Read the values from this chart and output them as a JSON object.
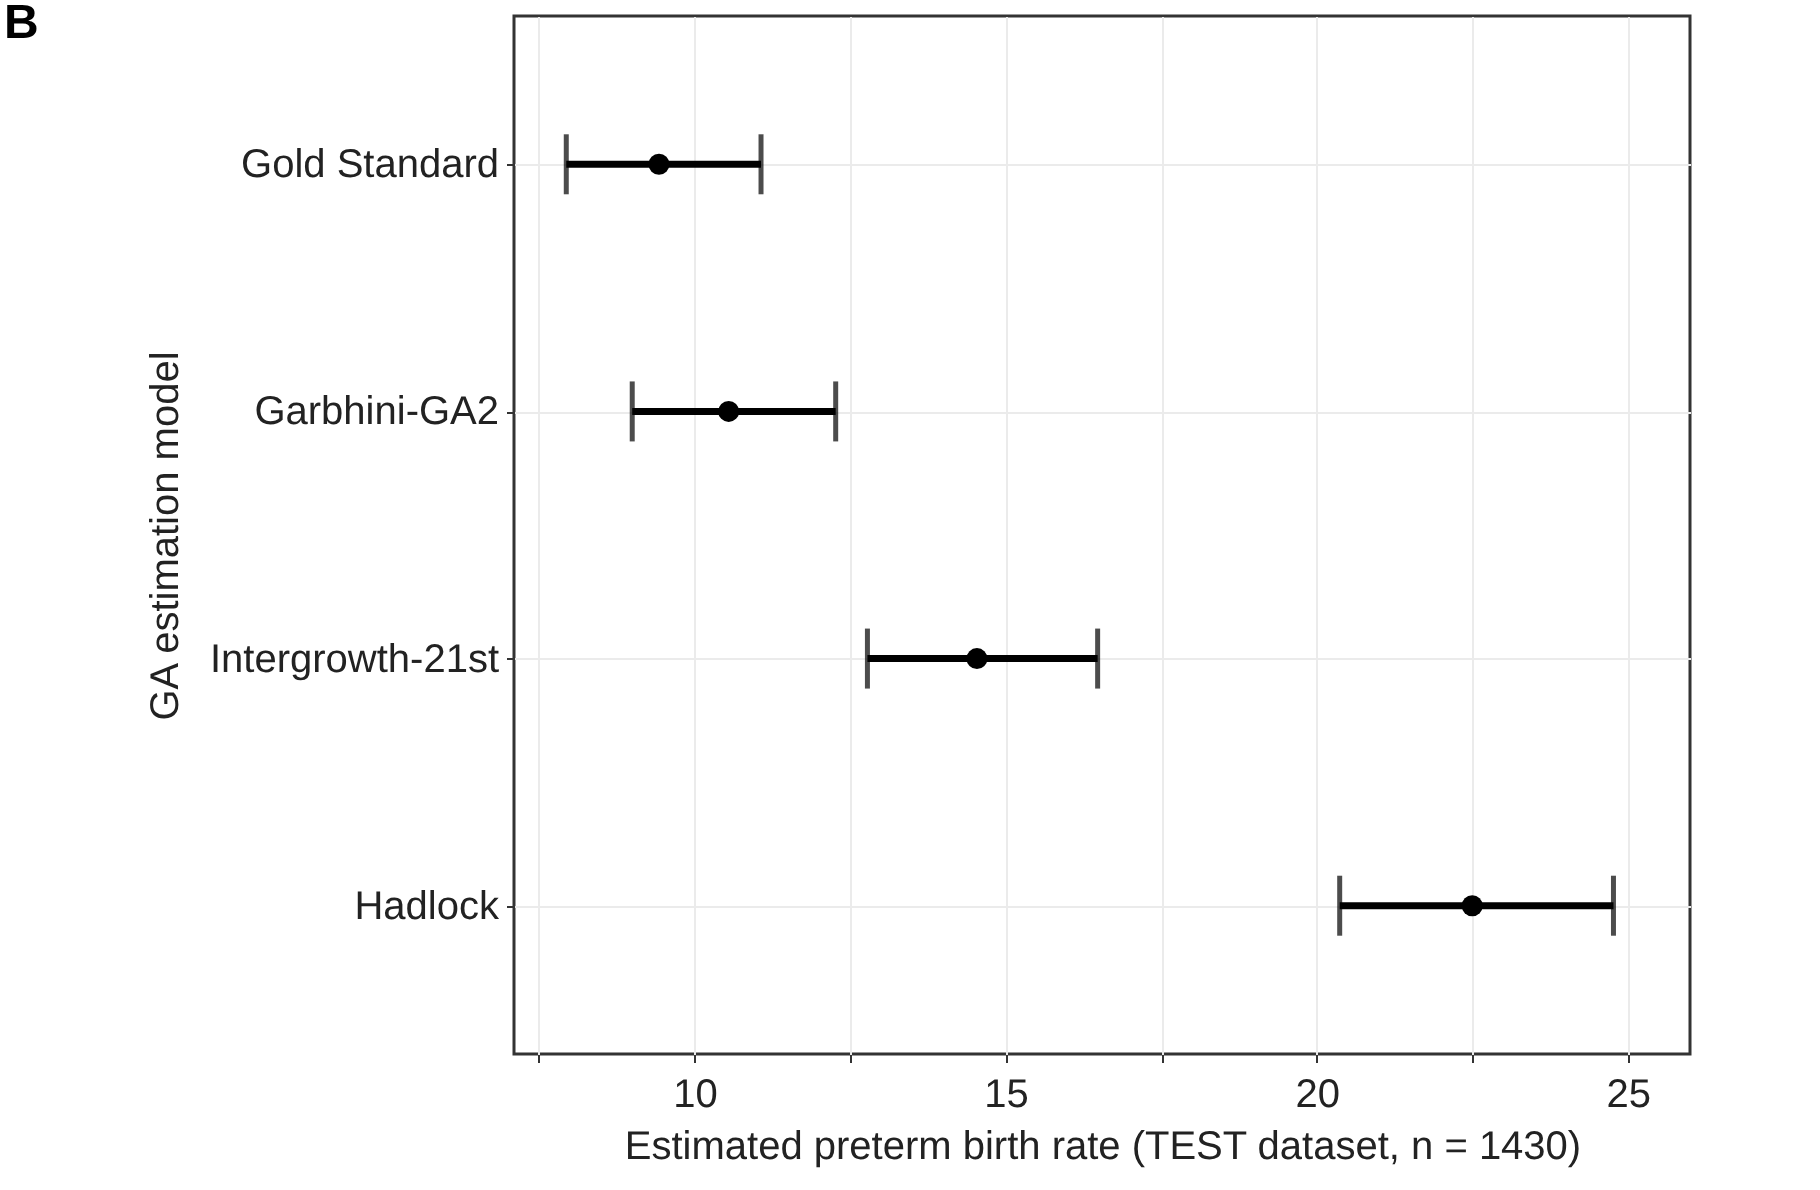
{
  "chart_data": {
    "type": "scatter",
    "orientation": "horizontal",
    "xlabel": "Estimated preterm birth rate (TEST dataset, n = 1430)",
    "ylabel": "GA estimation model",
    "annotations": [
      "B"
    ],
    "categories": [
      "Gold Standard",
      "Garbhini-GA2",
      "Intergrowth-21st",
      "Hadlock"
    ],
    "series": [
      {
        "color": "#000000",
        "values": [
          9.43,
          10.55,
          14.54,
          22.5
        ],
        "errors": [
          [
            7.94,
            11.07
          ],
          [
            9.0,
            12.27
          ],
          [
            12.78,
            16.48
          ],
          [
            20.37,
            24.77
          ]
        ]
      }
    ],
    "xlim": [
      7.1,
      26.0
    ],
    "xticks": [
      {
        "value": 7.5,
        "label": null
      },
      10,
      {
        "value": 12.5,
        "label": null
      },
      15,
      {
        "value": 17.5,
        "label": null
      },
      20,
      {
        "value": 22.5,
        "label": null
      },
      25
    ],
    "grid": true,
    "marker": "circle"
  }
}
